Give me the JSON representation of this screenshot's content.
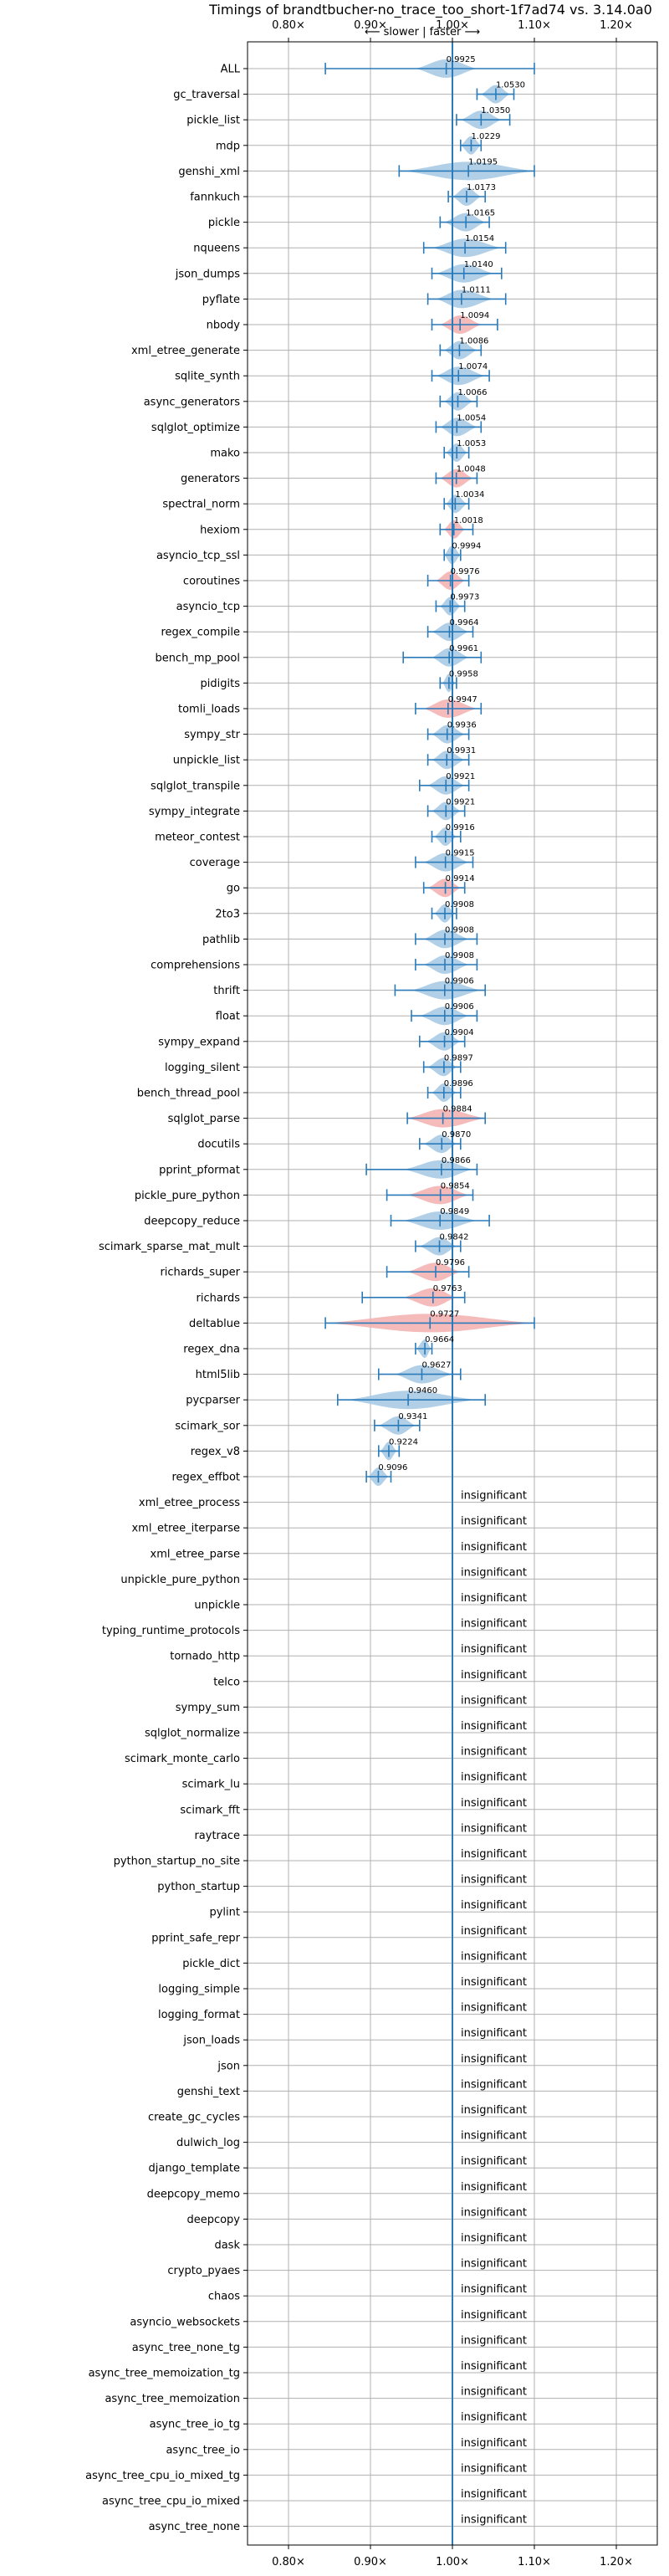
{
  "chart_data": {
    "type": "violin",
    "title": "Timings of brandtbucher-no_trace_too_short-1f7ad74 vs. 3.14.0a0",
    "subtitle": "⟵ slower | faster ⟶",
    "xlim": [
      0.75,
      1.25
    ],
    "x_ticks": [
      0.8,
      0.9,
      1.0,
      1.1,
      1.2
    ],
    "x_tick_labels": [
      "0.80×",
      "0.90×",
      "1.00×",
      "1.10×",
      "1.20×"
    ],
    "reference_x": 1.0,
    "grid": true,
    "colors": {
      "faster": "#a9cbe6",
      "slower": "#f4b2b3",
      "bar": "#2b7bba",
      "grid": "#b0b0b0"
    },
    "significant": [
      {
        "name": "ALL",
        "value": 0.9925,
        "label": "0.9925",
        "lo": 0.845,
        "hi": 1.1,
        "vmin": 0.955,
        "vmax": 1.03,
        "color": "faster"
      },
      {
        "name": "gc_traversal",
        "value": 1.053,
        "label": "1.0530",
        "lo": 1.03,
        "hi": 1.075,
        "vmin": 1.035,
        "vmax": 1.07,
        "color": "faster"
      },
      {
        "name": "pickle_list",
        "value": 1.035,
        "label": "1.0350",
        "lo": 1.005,
        "hi": 1.07,
        "vmin": 1.01,
        "vmax": 1.06,
        "color": "faster"
      },
      {
        "name": "mdp",
        "value": 1.0229,
        "label": "1.0229",
        "lo": 1.01,
        "hi": 1.035,
        "vmin": 1.01,
        "vmax": 1.035,
        "color": "faster"
      },
      {
        "name": "genshi_xml",
        "value": 1.0195,
        "label": "1.0195",
        "lo": 0.935,
        "hi": 1.1,
        "vmin": 0.94,
        "vmax": 1.1,
        "color": "faster"
      },
      {
        "name": "fannkuch",
        "value": 1.0173,
        "label": "1.0173",
        "lo": 0.995,
        "hi": 1.04,
        "vmin": 1.0,
        "vmax": 1.035,
        "color": "faster"
      },
      {
        "name": "pickle",
        "value": 1.0165,
        "label": "1.0165",
        "lo": 0.985,
        "hi": 1.045,
        "vmin": 0.99,
        "vmax": 1.04,
        "color": "faster"
      },
      {
        "name": "nqueens",
        "value": 1.0154,
        "label": "1.0154",
        "lo": 0.965,
        "hi": 1.065,
        "vmin": 0.975,
        "vmax": 1.06,
        "color": "faster"
      },
      {
        "name": "json_dumps",
        "value": 1.014,
        "label": "1.0140",
        "lo": 0.975,
        "hi": 1.06,
        "vmin": 0.98,
        "vmax": 1.05,
        "color": "faster"
      },
      {
        "name": "pyflate",
        "value": 1.0111,
        "label": "1.0111",
        "lo": 0.97,
        "hi": 1.065,
        "vmin": 0.98,
        "vmax": 1.05,
        "color": "faster"
      },
      {
        "name": "nbody",
        "value": 1.0094,
        "label": "1.0094",
        "lo": 0.975,
        "hi": 1.055,
        "vmin": 0.985,
        "vmax": 1.035,
        "color": "slower"
      },
      {
        "name": "xml_etree_generate",
        "value": 1.0086,
        "label": "1.0086",
        "lo": 0.985,
        "hi": 1.035,
        "vmin": 0.99,
        "vmax": 1.03,
        "color": "faster"
      },
      {
        "name": "sqlite_synth",
        "value": 1.0074,
        "label": "1.0074",
        "lo": 0.975,
        "hi": 1.045,
        "vmin": 0.98,
        "vmax": 1.04,
        "color": "faster"
      },
      {
        "name": "async_generators",
        "value": 1.0066,
        "label": "1.0066",
        "lo": 0.985,
        "hi": 1.03,
        "vmin": 0.99,
        "vmax": 1.025,
        "color": "faster"
      },
      {
        "name": "sqlglot_optimize",
        "value": 1.0054,
        "label": "1.0054",
        "lo": 0.98,
        "hi": 1.035,
        "vmin": 0.985,
        "vmax": 1.03,
        "color": "faster"
      },
      {
        "name": "mako",
        "value": 1.0053,
        "label": "1.0053",
        "lo": 0.99,
        "hi": 1.02,
        "vmin": 0.992,
        "vmax": 1.018,
        "color": "faster"
      },
      {
        "name": "generators",
        "value": 1.0048,
        "label": "1.0048",
        "lo": 0.98,
        "hi": 1.03,
        "vmin": 0.985,
        "vmax": 1.025,
        "color": "slower"
      },
      {
        "name": "spectral_norm",
        "value": 1.0034,
        "label": "1.0034",
        "lo": 0.99,
        "hi": 1.02,
        "vmin": 0.992,
        "vmax": 1.018,
        "color": "faster"
      },
      {
        "name": "hexiom",
        "value": 1.0018,
        "label": "1.0018",
        "lo": 0.985,
        "hi": 1.025,
        "vmin": 0.99,
        "vmax": 1.015,
        "color": "slower"
      },
      {
        "name": "asyncio_tcp_ssl",
        "value": 0.9994,
        "label": "0.9994",
        "lo": 0.99,
        "hi": 1.01,
        "vmin": 0.99,
        "vmax": 1.01,
        "color": "faster"
      },
      {
        "name": "coroutines",
        "value": 0.9976,
        "label": "0.9976",
        "lo": 0.97,
        "hi": 1.02,
        "vmin": 0.98,
        "vmax": 1.015,
        "color": "slower"
      },
      {
        "name": "asyncio_tcp",
        "value": 0.9973,
        "label": "0.9973",
        "lo": 0.98,
        "hi": 1.015,
        "vmin": 0.985,
        "vmax": 1.01,
        "color": "faster"
      },
      {
        "name": "regex_compile",
        "value": 0.9964,
        "label": "0.9964",
        "lo": 0.97,
        "hi": 1.025,
        "vmin": 0.975,
        "vmax": 1.02,
        "color": "faster"
      },
      {
        "name": "bench_mp_pool",
        "value": 0.9961,
        "label": "0.9961",
        "lo": 0.94,
        "hi": 1.035,
        "vmin": 0.975,
        "vmax": 1.02,
        "color": "faster"
      },
      {
        "name": "pidigits",
        "value": 0.9958,
        "label": "0.9958",
        "lo": 0.985,
        "hi": 1.005,
        "vmin": 0.988,
        "vmax": 1.003,
        "color": "faster"
      },
      {
        "name": "tomli_loads",
        "value": 0.9947,
        "label": "0.9947",
        "lo": 0.955,
        "hi": 1.035,
        "vmin": 0.965,
        "vmax": 1.03,
        "color": "slower"
      },
      {
        "name": "sympy_str",
        "value": 0.9936,
        "label": "0.9936",
        "lo": 0.97,
        "hi": 1.02,
        "vmin": 0.975,
        "vmax": 1.015,
        "color": "faster"
      },
      {
        "name": "unpickle_list",
        "value": 0.9931,
        "label": "0.9931",
        "lo": 0.97,
        "hi": 1.02,
        "vmin": 0.975,
        "vmax": 1.015,
        "color": "faster"
      },
      {
        "name": "sqlglot_transpile",
        "value": 0.9921,
        "label": "0.9921",
        "lo": 0.96,
        "hi": 1.02,
        "vmin": 0.97,
        "vmax": 1.015,
        "color": "faster"
      },
      {
        "name": "sympy_integrate",
        "value": 0.9921,
        "label": "0.9921",
        "lo": 0.97,
        "hi": 1.015,
        "vmin": 0.975,
        "vmax": 1.01,
        "color": "faster"
      },
      {
        "name": "meteor_contest",
        "value": 0.9916,
        "label": "0.9916",
        "lo": 0.975,
        "hi": 1.01,
        "vmin": 0.978,
        "vmax": 1.005,
        "color": "faster"
      },
      {
        "name": "coverage",
        "value": 0.9915,
        "label": "0.9915",
        "lo": 0.955,
        "hi": 1.025,
        "vmin": 0.965,
        "vmax": 1.02,
        "color": "faster"
      },
      {
        "name": "go",
        "value": 0.9914,
        "label": "0.9914",
        "lo": 0.965,
        "hi": 1.015,
        "vmin": 0.97,
        "vmax": 1.01,
        "color": "slower"
      },
      {
        "name": "2to3",
        "value": 0.9908,
        "label": "0.9908",
        "lo": 0.975,
        "hi": 1.005,
        "vmin": 0.978,
        "vmax": 1.003,
        "color": "faster"
      },
      {
        "name": "pathlib",
        "value": 0.9908,
        "label": "0.9908",
        "lo": 0.955,
        "hi": 1.03,
        "vmin": 0.965,
        "vmax": 1.02,
        "color": "faster"
      },
      {
        "name": "comprehensions",
        "value": 0.9908,
        "label": "0.9908",
        "lo": 0.955,
        "hi": 1.03,
        "vmin": 0.965,
        "vmax": 1.02,
        "color": "faster"
      },
      {
        "name": "thrift",
        "value": 0.9906,
        "label": "0.9906",
        "lo": 0.93,
        "hi": 1.04,
        "vmin": 0.95,
        "vmax": 1.035,
        "color": "faster"
      },
      {
        "name": "float",
        "value": 0.9906,
        "label": "0.9906",
        "lo": 0.95,
        "hi": 1.03,
        "vmin": 0.96,
        "vmax": 1.02,
        "color": "faster"
      },
      {
        "name": "sympy_expand",
        "value": 0.9904,
        "label": "0.9904",
        "lo": 0.96,
        "hi": 1.015,
        "vmin": 0.968,
        "vmax": 1.01,
        "color": "faster"
      },
      {
        "name": "logging_silent",
        "value": 0.9897,
        "label": "0.9897",
        "lo": 0.965,
        "hi": 1.01,
        "vmin": 0.97,
        "vmax": 1.005,
        "color": "faster"
      },
      {
        "name": "bench_thread_pool",
        "value": 0.9896,
        "label": "0.9896",
        "lo": 0.97,
        "hi": 1.01,
        "vmin": 0.975,
        "vmax": 1.005,
        "color": "faster"
      },
      {
        "name": "sqlglot_parse",
        "value": 0.9884,
        "label": "0.9884",
        "lo": 0.945,
        "hi": 1.04,
        "vmin": 0.945,
        "vmax": 1.04,
        "color": "slower"
      },
      {
        "name": "docutils",
        "value": 0.987,
        "label": "0.9870",
        "lo": 0.96,
        "hi": 1.01,
        "vmin": 0.965,
        "vmax": 1.005,
        "color": "faster"
      },
      {
        "name": "pprint_pformat",
        "value": 0.9866,
        "label": "0.9866",
        "lo": 0.895,
        "hi": 1.03,
        "vmin": 0.94,
        "vmax": 1.025,
        "color": "faster"
      },
      {
        "name": "pickle_pure_python",
        "value": 0.9854,
        "label": "0.9854",
        "lo": 0.92,
        "hi": 1.025,
        "vmin": 0.945,
        "vmax": 1.02,
        "color": "slower"
      },
      {
        "name": "deepcopy_reduce",
        "value": 0.9849,
        "label": "0.9849",
        "lo": 0.925,
        "hi": 1.045,
        "vmin": 0.94,
        "vmax": 1.03,
        "color": "faster"
      },
      {
        "name": "scimark_sparse_mat_mult",
        "value": 0.9842,
        "label": "0.9842",
        "lo": 0.955,
        "hi": 1.01,
        "vmin": 0.96,
        "vmax": 1.005,
        "color": "faster"
      },
      {
        "name": "richards_super",
        "value": 0.9796,
        "label": "0.9796",
        "lo": 0.92,
        "hi": 1.02,
        "vmin": 0.945,
        "vmax": 1.01,
        "color": "slower"
      },
      {
        "name": "richards",
        "value": 0.9763,
        "label": "0.9763",
        "lo": 0.89,
        "hi": 1.015,
        "vmin": 0.94,
        "vmax": 1.005,
        "color": "slower"
      },
      {
        "name": "deltablue",
        "value": 0.9727,
        "label": "0.9727",
        "lo": 0.845,
        "hi": 1.1,
        "vmin": 0.845,
        "vmax": 1.1,
        "color": "slower"
      },
      {
        "name": "regex_dna",
        "value": 0.9664,
        "label": "0.9664",
        "lo": 0.955,
        "hi": 0.975,
        "vmin": 0.956,
        "vmax": 0.974,
        "color": "faster"
      },
      {
        "name": "html5lib",
        "value": 0.9627,
        "label": "0.9627",
        "lo": 0.91,
        "hi": 1.01,
        "vmin": 0.93,
        "vmax": 1.0,
        "color": "faster"
      },
      {
        "name": "pycparser",
        "value": 0.946,
        "label": "0.9460",
        "lo": 0.86,
        "hi": 1.04,
        "vmin": 0.87,
        "vmax": 1.03,
        "color": "faster"
      },
      {
        "name": "scimark_sor",
        "value": 0.9341,
        "label": "0.9341",
        "lo": 0.905,
        "hi": 0.96,
        "vmin": 0.91,
        "vmax": 0.955,
        "color": "faster"
      },
      {
        "name": "regex_v8",
        "value": 0.9224,
        "label": "0.9224",
        "lo": 0.91,
        "hi": 0.935,
        "vmin": 0.912,
        "vmax": 0.932,
        "color": "faster"
      },
      {
        "name": "regex_effbot",
        "value": 0.9096,
        "label": "0.9096",
        "lo": 0.895,
        "hi": 0.925,
        "vmin": 0.897,
        "vmax": 0.922,
        "color": "faster"
      }
    ],
    "insignificant_label": "insignificant",
    "insignificant": [
      "xml_etree_process",
      "xml_etree_iterparse",
      "xml_etree_parse",
      "unpickle_pure_python",
      "unpickle",
      "typing_runtime_protocols",
      "tornado_http",
      "telco",
      "sympy_sum",
      "sqlglot_normalize",
      "scimark_monte_carlo",
      "scimark_lu",
      "scimark_fft",
      "raytrace",
      "python_startup_no_site",
      "python_startup",
      "pylint",
      "pprint_safe_repr",
      "pickle_dict",
      "logging_simple",
      "logging_format",
      "json_loads",
      "json",
      "genshi_text",
      "create_gc_cycles",
      "dulwich_log",
      "django_template",
      "deepcopy_memo",
      "deepcopy",
      "dask",
      "crypto_pyaes",
      "chaos",
      "asyncio_websockets",
      "async_tree_none_tg",
      "async_tree_memoization_tg",
      "async_tree_memoization",
      "async_tree_io_tg",
      "async_tree_io",
      "async_tree_cpu_io_mixed_tg",
      "async_tree_cpu_io_mixed",
      "async_tree_none"
    ]
  }
}
